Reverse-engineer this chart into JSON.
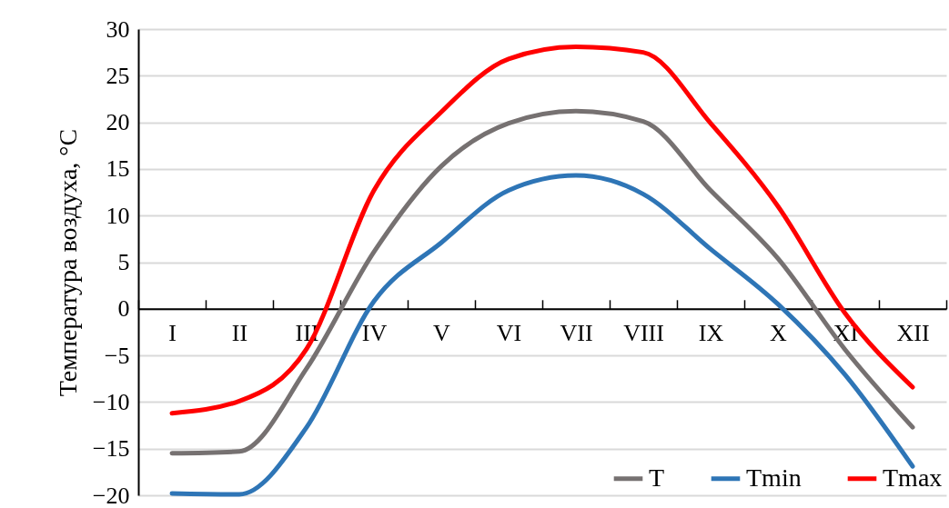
{
  "chart_data": {
    "type": "line",
    "ylabel": "Температура воздуха, °C",
    "categories": [
      "I",
      "II",
      "III",
      "IV",
      "V",
      "VI",
      "VII",
      "VIII",
      "IX",
      "X",
      "XI",
      "XII"
    ],
    "series": [
      {
        "name": "T",
        "color": "#767171",
        "values": [
          -15.5,
          -15.3,
          -6.4,
          6.1,
          15.3,
          19.9,
          21.2,
          20.1,
          12.7,
          5.4,
          -4.4,
          -12.7
        ]
      },
      {
        "name": "Tmin",
        "color": "#2e75b6",
        "values": [
          -19.8,
          -19.9,
          -12.7,
          0.8,
          7.1,
          12.7,
          14.3,
          12.3,
          6.4,
          0.5,
          -7.1,
          -16.9
        ]
      },
      {
        "name": "Tmax",
        "color": "#ff0000",
        "values": [
          -11.2,
          -9.9,
          -4.3,
          12.7,
          21.1,
          26.8,
          28.1,
          27.5,
          19.9,
          11.0,
          -0.5,
          -8.4
        ]
      }
    ],
    "ylim": [
      -20,
      30
    ],
    "yticks": [
      -20,
      -15,
      -10,
      -5,
      0,
      5,
      10,
      15,
      20,
      25,
      30
    ],
    "grid": "y",
    "legend": "bottom right",
    "marker": "none",
    "line_style": "solid"
  }
}
